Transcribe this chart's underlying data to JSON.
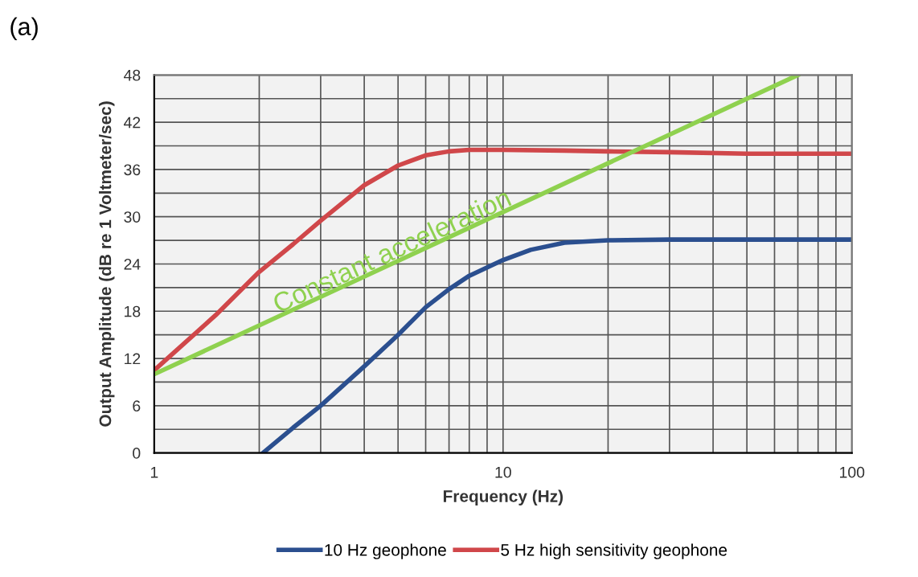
{
  "chart_data": {
    "type": "line",
    "xlabel": "Frequency (Hz)",
    "ylabel": "Output Amplitude (dB re 1 Voltmeter/sec)",
    "log": "x",
    "xlim": [
      1,
      100
    ],
    "xticks": [
      1,
      10,
      100
    ],
    "ylim": [
      0,
      48
    ],
    "yticks": [
      0,
      6,
      12,
      18,
      24,
      30,
      36,
      42,
      48
    ],
    "grid": true,
    "legend": "bottom",
    "marker": "none",
    "line_style": "solid",
    "annotations": [
      "(a)",
      {
        "text": "Constant acceleration",
        "x": 5,
        "y": 24
      }
    ],
    "series": [
      {
        "name": "10 Hz geophone",
        "color": "#2b4f8f",
        "x": [
          2.05,
          2.5,
          3,
          4,
          5,
          6,
          7,
          8,
          10,
          12,
          15,
          20,
          30,
          50,
          100
        ],
        "values": [
          0,
          3.2,
          6,
          11,
          15,
          18.5,
          20.8,
          22.5,
          24.5,
          25.8,
          26.7,
          27,
          27.1,
          27.1,
          27.1
        ]
      },
      {
        "name": "5 Hz high sensitivity geophone",
        "color": "#d0474a",
        "x": [
          1,
          1.5,
          2,
          2.5,
          3,
          4,
          5,
          6,
          7,
          8,
          10,
          15,
          20,
          30,
          50,
          100
        ],
        "values": [
          10.5,
          17.5,
          23,
          26.5,
          29.5,
          34,
          36.5,
          37.8,
          38.3,
          38.5,
          38.5,
          38.4,
          38.3,
          38.2,
          38,
          38
        ]
      },
      {
        "color": "#8fd14f",
        "x": [
          1,
          70
        ],
        "values": [
          10,
          48
        ]
      }
    ]
  }
}
